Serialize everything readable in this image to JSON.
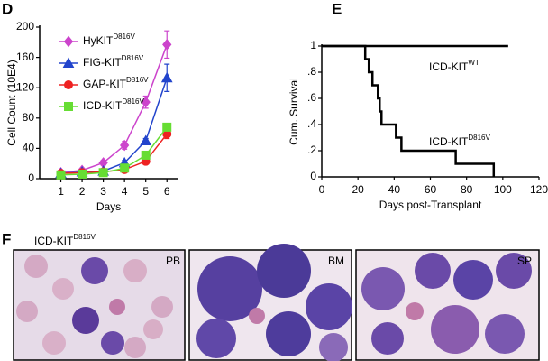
{
  "panel_labels": [
    "D",
    "E",
    "F"
  ],
  "chart_data": [
    {
      "type": "line",
      "x_label": "Days",
      "y_label": "Cell Count (10E4)",
      "x": [
        1,
        2,
        3,
        4,
        5,
        6
      ],
      "xlim": [
        0,
        6.5
      ],
      "xticks": [
        1,
        2,
        3,
        4,
        5,
        6
      ],
      "ylim": [
        0,
        200
      ],
      "yticks": [
        0,
        40,
        80,
        120,
        160,
        200
      ],
      "series": [
        {
          "name": "HyKIT",
          "name_superscript": "D816V",
          "color": "#cc44cc",
          "marker": "diamond",
          "values": [
            8,
            11,
            21,
            44,
            101,
            177
          ],
          "errors": [
            1,
            2,
            3,
            5,
            8,
            18
          ]
        },
        {
          "name": "FIG-KIT",
          "name_superscript": "D816V",
          "color": "#2244cc",
          "marker": "triangle",
          "values": [
            7,
            9,
            10,
            21,
            50,
            133
          ],
          "errors": [
            1,
            1,
            1,
            3,
            3,
            18
          ]
        },
        {
          "name": "GAP-KIT",
          "name_superscript": "D816V",
          "color": "#ee2222",
          "marker": "circle",
          "values": [
            7,
            8,
            9,
            12,
            23,
            59
          ],
          "errors": [
            1,
            1,
            1,
            2,
            3,
            6
          ]
        },
        {
          "name": "ICD-KIT",
          "name_superscript": "D816V",
          "color": "#66dd33",
          "marker": "square",
          "values": [
            5,
            6,
            8,
            14,
            31,
            68
          ],
          "errors": [
            1,
            1,
            1,
            2,
            4,
            5
          ]
        }
      ]
    },
    {
      "type": "step",
      "x_label": "Days post-Transplant",
      "y_label": "Cum. Survival",
      "xlim": [
        0,
        120
      ],
      "xticks": [
        0,
        20,
        40,
        60,
        80,
        100,
        120
      ],
      "ylim": [
        0,
        1
      ],
      "yticks": [
        0,
        {
          "value": 0.2,
          "label": ".2"
        },
        {
          "value": 0.4,
          "label": ".4"
        },
        {
          "value": 0.6,
          "label": ".6"
        },
        {
          "value": 0.8,
          "label": ".8"
        },
        1
      ],
      "series": [
        {
          "name": "ICD-KIT",
          "name_superscript": "WT",
          "color": "#000000",
          "x": [
            0,
            103
          ],
          "values": [
            1,
            1
          ]
        },
        {
          "name": "ICD-KIT",
          "name_superscript": "D816V",
          "color": "#000000",
          "x": [
            0,
            24,
            26,
            28,
            31,
            32,
            33,
            41,
            44,
            74,
            95
          ],
          "values": [
            1,
            0.9,
            0.8,
            0.7,
            0.6,
            0.5,
            0.4,
            0.3,
            0.2,
            0.1,
            0
          ]
        }
      ]
    }
  ],
  "figure_f": {
    "title": "ICD-KIT",
    "title_superscript": "D816V",
    "images": [
      "PB",
      "BM",
      "SP"
    ]
  }
}
